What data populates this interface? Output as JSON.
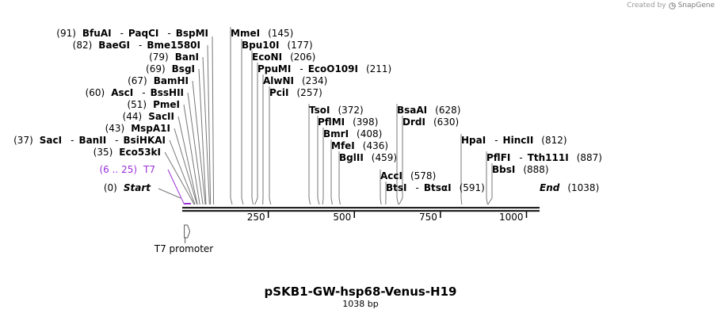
{
  "watermark": {
    "created_by": "Created by",
    "brand": "SnapGene",
    "icon": "snapgene-logo-icon"
  },
  "map": {
    "title": "pSKB1-GW-hsp68-Venus-H19",
    "length_label": "1038 bp",
    "total_bp": 1038,
    "ticks": [
      250,
      500,
      750,
      1000
    ],
    "feature_color": "#9b30d9",
    "labels": [
      {
        "id": "start",
        "parts": [
          {
            "t": "(0)",
            "k": "pos"
          },
          {
            "t": "Start",
            "k": "ital"
          }
        ],
        "bp": 0
      },
      {
        "id": "t7",
        "parts": [
          {
            "t": "(6 .. 25)",
            "k": "feat"
          },
          {
            "t": "T7",
            "k": "feat"
          }
        ],
        "bp": 6
      },
      {
        "id": "eco53ki",
        "parts": [
          {
            "t": "(35)",
            "k": "pos"
          },
          {
            "t": "Eco53kI",
            "k": "enz"
          }
        ],
        "bp": 35
      },
      {
        "id": "saci",
        "parts": [
          {
            "t": "(37)",
            "k": "pos"
          },
          {
            "t": "SacI",
            "k": "enz"
          },
          {
            "t": "-",
            "k": "sep"
          },
          {
            "t": "BanII",
            "k": "enz"
          },
          {
            "t": "-",
            "k": "sep"
          },
          {
            "t": "BsiHKAI",
            "k": "enz"
          }
        ],
        "bp": 37
      },
      {
        "id": "mspa1i",
        "parts": [
          {
            "t": "(43)",
            "k": "pos"
          },
          {
            "t": "MspA1I",
            "k": "enz"
          }
        ],
        "bp": 43
      },
      {
        "id": "sacii",
        "parts": [
          {
            "t": "(44)",
            "k": "pos"
          },
          {
            "t": "SacII",
            "k": "enz"
          }
        ],
        "bp": 44
      },
      {
        "id": "pmei",
        "parts": [
          {
            "t": "(51)",
            "k": "pos"
          },
          {
            "t": "PmeI",
            "k": "enz"
          }
        ],
        "bp": 51
      },
      {
        "id": "asci",
        "parts": [
          {
            "t": "(60)",
            "k": "pos"
          },
          {
            "t": "AscI",
            "k": "enz"
          },
          {
            "t": "-",
            "k": "sep"
          },
          {
            "t": "BssHII",
            "k": "enz"
          }
        ],
        "bp": 60
      },
      {
        "id": "bamhi",
        "parts": [
          {
            "t": "(67)",
            "k": "pos"
          },
          {
            "t": "BamHI",
            "k": "enz"
          }
        ],
        "bp": 67
      },
      {
        "id": "bsgi",
        "parts": [
          {
            "t": "(69)",
            "k": "pos"
          },
          {
            "t": "BsgI",
            "k": "enz"
          }
        ],
        "bp": 69
      },
      {
        "id": "bani",
        "parts": [
          {
            "t": "(79)",
            "k": "pos"
          },
          {
            "t": "BanI",
            "k": "enz"
          }
        ],
        "bp": 79
      },
      {
        "id": "baegi",
        "parts": [
          {
            "t": "(82)",
            "k": "pos"
          },
          {
            "t": "BaeGI",
            "k": "enz"
          },
          {
            "t": "-",
            "k": "sep"
          },
          {
            "t": "Bme1580I",
            "k": "enz"
          }
        ],
        "bp": 82
      },
      {
        "id": "bfuai",
        "parts": [
          {
            "t": "(91)",
            "k": "pos"
          },
          {
            "t": "BfuAI",
            "k": "enz"
          },
          {
            "t": "-",
            "k": "sep"
          },
          {
            "t": "PaqCI",
            "k": "enz"
          },
          {
            "t": "-",
            "k": "sep"
          },
          {
            "t": "BspMI",
            "k": "enz"
          }
        ],
        "bp": 91
      },
      {
        "id": "mmei",
        "parts": [
          {
            "t": "MmeI",
            "k": "enz"
          },
          {
            "t": "(145)",
            "k": "pos"
          }
        ],
        "bp": 145
      },
      {
        "id": "bpu10i",
        "parts": [
          {
            "t": "Bpu10I",
            "k": "enz"
          },
          {
            "t": "(177)",
            "k": "pos"
          }
        ],
        "bp": 177
      },
      {
        "id": "econi",
        "parts": [
          {
            "t": "EcoNI",
            "k": "enz"
          },
          {
            "t": "(206)",
            "k": "pos"
          }
        ],
        "bp": 206
      },
      {
        "id": "ppumi",
        "parts": [
          {
            "t": "PpuMI",
            "k": "enz"
          },
          {
            "t": "-",
            "k": "sep"
          },
          {
            "t": "EcoO109I",
            "k": "enz"
          },
          {
            "t": "(211)",
            "k": "pos"
          }
        ],
        "bp": 211
      },
      {
        "id": "alwni",
        "parts": [
          {
            "t": "AlwNI",
            "k": "enz"
          },
          {
            "t": "(234)",
            "k": "pos"
          }
        ],
        "bp": 234
      },
      {
        "id": "pcii",
        "parts": [
          {
            "t": "PciI",
            "k": "enz"
          },
          {
            "t": "(257)",
            "k": "pos"
          }
        ],
        "bp": 257
      },
      {
        "id": "tsoi",
        "parts": [
          {
            "t": "TsoI",
            "k": "enz"
          },
          {
            "t": "(372)",
            "k": "pos"
          }
        ],
        "bp": 372
      },
      {
        "id": "pflmi",
        "parts": [
          {
            "t": "PflMI",
            "k": "enz"
          },
          {
            "t": "(398)",
            "k": "pos"
          }
        ],
        "bp": 398
      },
      {
        "id": "bmri",
        "parts": [
          {
            "t": "BmrI",
            "k": "enz"
          },
          {
            "t": "(408)",
            "k": "pos"
          }
        ],
        "bp": 408
      },
      {
        "id": "mfei",
        "parts": [
          {
            "t": "MfeI",
            "k": "enz"
          },
          {
            "t": "(436)",
            "k": "pos"
          }
        ],
        "bp": 436
      },
      {
        "id": "bglii",
        "parts": [
          {
            "t": "BglII",
            "k": "enz"
          },
          {
            "t": "(459)",
            "k": "pos"
          }
        ],
        "bp": 459
      },
      {
        "id": "acci",
        "parts": [
          {
            "t": "AccI",
            "k": "enz"
          },
          {
            "t": "(578)",
            "k": "pos"
          }
        ],
        "bp": 578
      },
      {
        "id": "btsi",
        "parts": [
          {
            "t": "BtsI",
            "k": "enz"
          },
          {
            "t": "-",
            "k": "sep"
          },
          {
            "t": "BtsαI",
            "k": "enz"
          },
          {
            "t": "(591)",
            "k": "pos"
          }
        ],
        "bp": 591
      },
      {
        "id": "bsaai",
        "parts": [
          {
            "t": "BsaAI",
            "k": "enz"
          },
          {
            "t": "(628)",
            "k": "pos"
          }
        ],
        "bp": 628
      },
      {
        "id": "drdi",
        "parts": [
          {
            "t": "DrdI",
            "k": "enz"
          },
          {
            "t": "(630)",
            "k": "pos"
          }
        ],
        "bp": 630
      },
      {
        "id": "hpai",
        "parts": [
          {
            "t": "HpaI",
            "k": "enz"
          },
          {
            "t": "-",
            "k": "sep"
          },
          {
            "t": "HincII",
            "k": "enz"
          },
          {
            "t": "(812)",
            "k": "pos"
          }
        ],
        "bp": 812
      },
      {
        "id": "pflfi",
        "parts": [
          {
            "t": "PflFI",
            "k": "enz"
          },
          {
            "t": "-",
            "k": "sep"
          },
          {
            "t": "Tth111I",
            "k": "enz"
          },
          {
            "t": "(887)",
            "k": "pos"
          }
        ],
        "bp": 887
      },
      {
        "id": "bbsi",
        "parts": [
          {
            "t": "BbsI",
            "k": "enz"
          },
          {
            "t": "(888)",
            "k": "pos"
          }
        ],
        "bp": 888
      },
      {
        "id": "end",
        "parts": [
          {
            "t": "End",
            "k": "ital"
          },
          {
            "t": "(1038)",
            "k": "pos"
          }
        ],
        "bp": 1038
      }
    ],
    "promoter": {
      "label": "T7 promoter",
      "bp_start": 6,
      "bp_end": 25
    }
  }
}
